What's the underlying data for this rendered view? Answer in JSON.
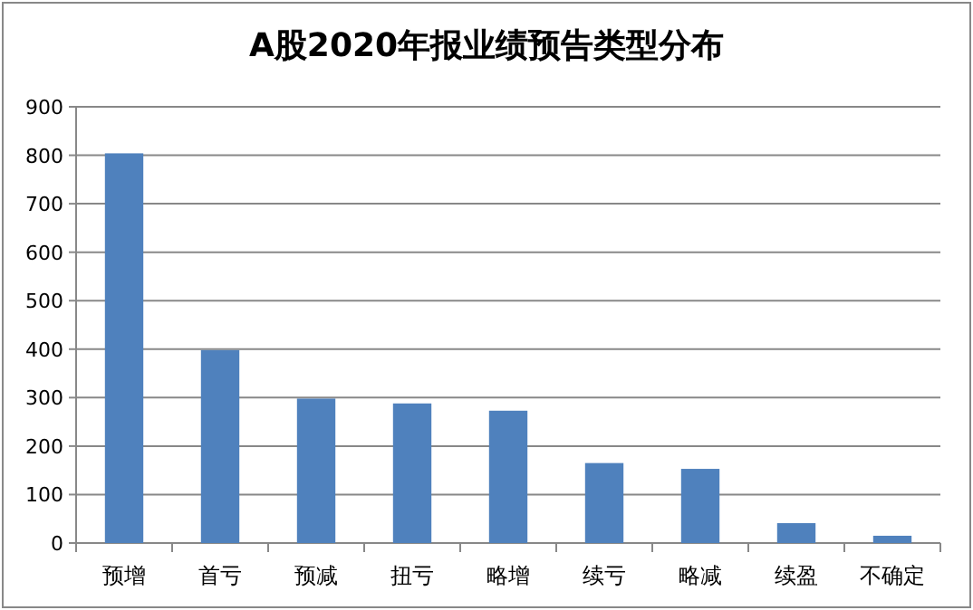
{
  "chart_data": {
    "type": "bar",
    "title": "A股2020年报业绩预告类型分布",
    "categories": [
      "预增",
      "首亏",
      "预减",
      "扭亏",
      "略增",
      "续亏",
      "略减",
      "续盈",
      "不确定"
    ],
    "values": [
      804,
      398,
      298,
      288,
      273,
      165,
      153,
      41,
      15
    ],
    "color": "#4f81bd",
    "ylim": [
      0,
      900
    ],
    "yticks": [
      0,
      100,
      200,
      300,
      400,
      500,
      600,
      700,
      800,
      900
    ],
    "grid": "y"
  }
}
